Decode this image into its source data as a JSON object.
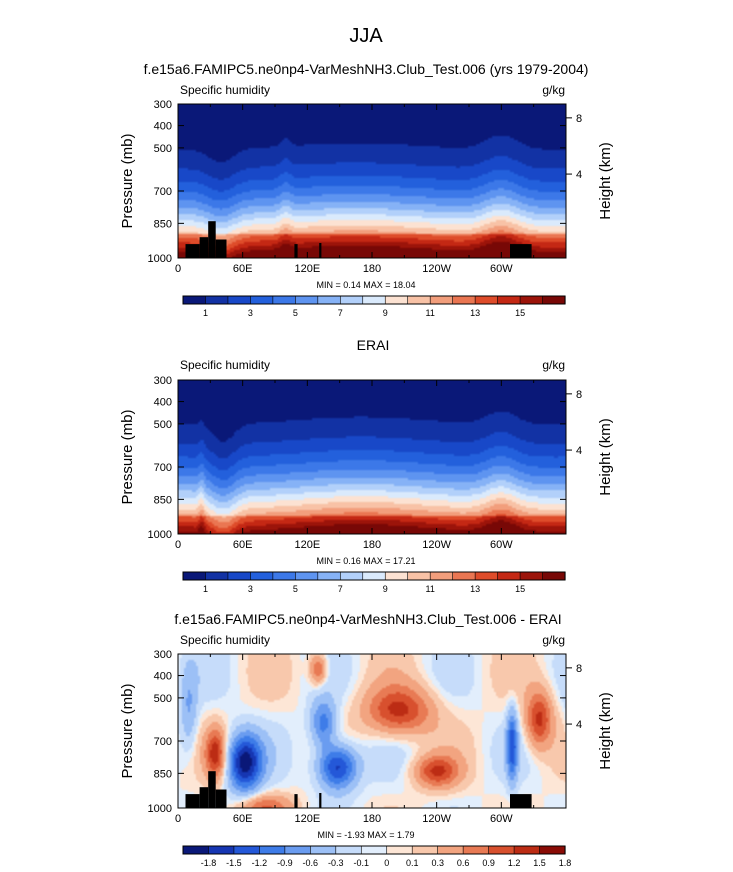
{
  "title": "JJA",
  "colors": {
    "sequential": [
      "#0a1878",
      "#1232a4",
      "#1848c8",
      "#2360dc",
      "#3c78e8",
      "#5e94f0",
      "#86b2f6",
      "#b2d0fa",
      "#daeafc",
      "#fce2d2",
      "#f8c2a6",
      "#f29e7c",
      "#ea7652",
      "#de4c2a",
      "#c42814",
      "#9c140a",
      "#780806"
    ],
    "diverging": [
      "#0a1878",
      "#1636b2",
      "#2458d8",
      "#3e7ce8",
      "#6a9cf0",
      "#9cc0f6",
      "#c6dcfa",
      "#e2eefc",
      "#fde6d6",
      "#f8c8ac",
      "#f2a480",
      "#e87a54",
      "#d8502e",
      "#bc2c14",
      "#8a0c06"
    ],
    "mask": "#000000"
  },
  "chart_data": [
    {
      "type": "contour",
      "title": "f.e15a6.FAMIPC5.ne0np4-VarMeshNH3.Club_Test.006 (yrs 1979-2004)",
      "left_label": "Specific humidity",
      "right_label": "g/kg",
      "ylabel": "Pressure (mb)",
      "ylabel_right": "Height (km)",
      "yticks": [
        "300",
        "400",
        "500",
        "700",
        "850",
        "1000"
      ],
      "yticks_right": [
        "8",
        "4"
      ],
      "xticks": [
        "0",
        "60E",
        "120E",
        "180",
        "120W",
        "60W"
      ],
      "stats": "MIN =  0.14  MAX = 18.04",
      "colorbar_labels": [
        "1",
        "3",
        "5",
        "7",
        "9",
        "11",
        "13",
        "15"
      ],
      "levels": [
        1,
        2,
        3,
        4,
        5,
        6,
        7,
        8,
        9,
        10,
        11,
        12,
        13,
        14,
        15,
        16
      ],
      "min": 0.14,
      "max": 18.04,
      "field": "model"
    },
    {
      "type": "contour",
      "title": "ERAI",
      "left_label": "Specific humidity",
      "right_label": "g/kg",
      "ylabel": "Pressure (mb)",
      "ylabel_right": "Height (km)",
      "yticks": [
        "300",
        "400",
        "500",
        "700",
        "850",
        "1000"
      ],
      "yticks_right": [
        "8",
        "4"
      ],
      "xticks": [
        "0",
        "60E",
        "120E",
        "180",
        "120W",
        "60W"
      ],
      "stats": "MIN =  0.16  MAX =  17.21",
      "colorbar_labels": [
        "1",
        "3",
        "5",
        "7",
        "9",
        "11",
        "13",
        "15"
      ],
      "levels": [
        1,
        2,
        3,
        4,
        5,
        6,
        7,
        8,
        9,
        10,
        11,
        12,
        13,
        14,
        15,
        16
      ],
      "min": 0.16,
      "max": 17.21,
      "field": "obs"
    },
    {
      "type": "contour",
      "title": "f.e15a6.FAMIPC5.ne0np4-VarMeshNH3.Club_Test.006 - ERAI",
      "left_label": "Specific humidity",
      "right_label": "g/kg",
      "ylabel": "Pressure (mb)",
      "ylabel_right": "Height (km)",
      "yticks": [
        "300",
        "400",
        "500",
        "700",
        "850",
        "1000"
      ],
      "yticks_right": [
        "8",
        "4"
      ],
      "xticks": [
        "0",
        "60E",
        "120E",
        "180",
        "120W",
        "60W"
      ],
      "stats": "MIN = -1.93  MAX =  1.79",
      "colorbar_labels": [
        "-1.8",
        "-1.5",
        "-1.2",
        "-0.9",
        "-0.6",
        "-0.3",
        "-0.1",
        "0",
        "0.1",
        "0.3",
        "0.6",
        "0.9",
        "1.2",
        "1.5",
        "1.8"
      ],
      "levels": [
        -1.8,
        -1.5,
        -1.2,
        -0.9,
        -0.6,
        -0.3,
        -0.1,
        0,
        0.1,
        0.3,
        0.6,
        0.9,
        1.2,
        1.5,
        1.8
      ],
      "min": -1.93,
      "max": 1.79,
      "field": "diff"
    }
  ]
}
